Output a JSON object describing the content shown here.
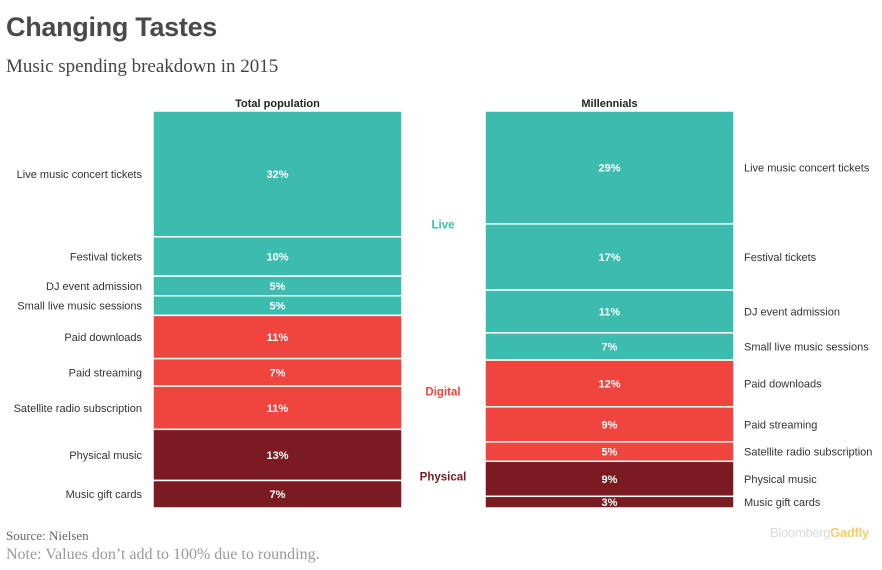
{
  "title": "Changing Tastes",
  "subtitle": "Music spending breakdown in 2015",
  "source": "Source: Nielsen",
  "note": "Note: Values don’t add to 100% due to rounding.",
  "logo": {
    "part1": "Bloomberg",
    "part2": "Gadfly"
  },
  "colors": {
    "Live": "#3bbcaf",
    "Digital": "#f0443f",
    "Physical": "#7b1a20",
    "label": "#333333",
    "value": "#ffffff"
  },
  "chart_data": {
    "type": "bar",
    "stacked": true,
    "orientation": "vertical-stack",
    "groups": [
      {
        "label": "Live",
        "color": "#3bbcaf"
      },
      {
        "label": "Digital",
        "color": "#f0443f"
      },
      {
        "label": "Physical",
        "color": "#7b1a20"
      }
    ],
    "columns": [
      {
        "name": "Total population",
        "segments": [
          {
            "label": "Live music concert tickets",
            "value": 32,
            "value_label": "32%",
            "group": "Live"
          },
          {
            "label": "Festival tickets",
            "value": 10,
            "value_label": "10%",
            "group": "Live"
          },
          {
            "label": "DJ event admission",
            "value": 5,
            "value_label": "5%",
            "group": "Live"
          },
          {
            "label": "Small live music sessions",
            "value": 5,
            "value_label": "5%",
            "group": "Live"
          },
          {
            "label": "Paid downloads",
            "value": 11,
            "value_label": "11%",
            "group": "Digital"
          },
          {
            "label": "Paid streaming",
            "value": 7,
            "value_label": "7%",
            "group": "Digital"
          },
          {
            "label": "Satellite radio subscription",
            "value": 11,
            "value_label": "11%",
            "group": "Digital"
          },
          {
            "label": "Physical music",
            "value": 13,
            "value_label": "13%",
            "group": "Physical"
          },
          {
            "label": "Music gift cards",
            "value": 7,
            "value_label": "7%",
            "group": "Physical"
          }
        ]
      },
      {
        "name": "Millennials",
        "segments": [
          {
            "label": "Live music concert tickets",
            "value": 29,
            "value_label": "29%",
            "group": "Live"
          },
          {
            "label": "Festival tickets",
            "value": 17,
            "value_label": "17%",
            "group": "Live"
          },
          {
            "label": "DJ event admission",
            "value": 11,
            "value_label": "11%",
            "group": "Live"
          },
          {
            "label": "Small live music sessions",
            "value": 7,
            "value_label": "7%",
            "group": "Live"
          },
          {
            "label": "Paid downloads",
            "value": 12,
            "value_label": "12%",
            "group": "Digital"
          },
          {
            "label": "Paid streaming",
            "value": 9,
            "value_label": "9%",
            "group": "Digital"
          },
          {
            "label": "Satellite radio subscription",
            "value": 5,
            "value_label": "5%",
            "group": "Digital"
          },
          {
            "label": "Physical music",
            "value": 9,
            "value_label": "9%",
            "group": "Physical"
          },
          {
            "label": "Music gift cards",
            "value": 3,
            "value_label": "3%",
            "group": "Physical"
          }
        ]
      }
    ]
  }
}
